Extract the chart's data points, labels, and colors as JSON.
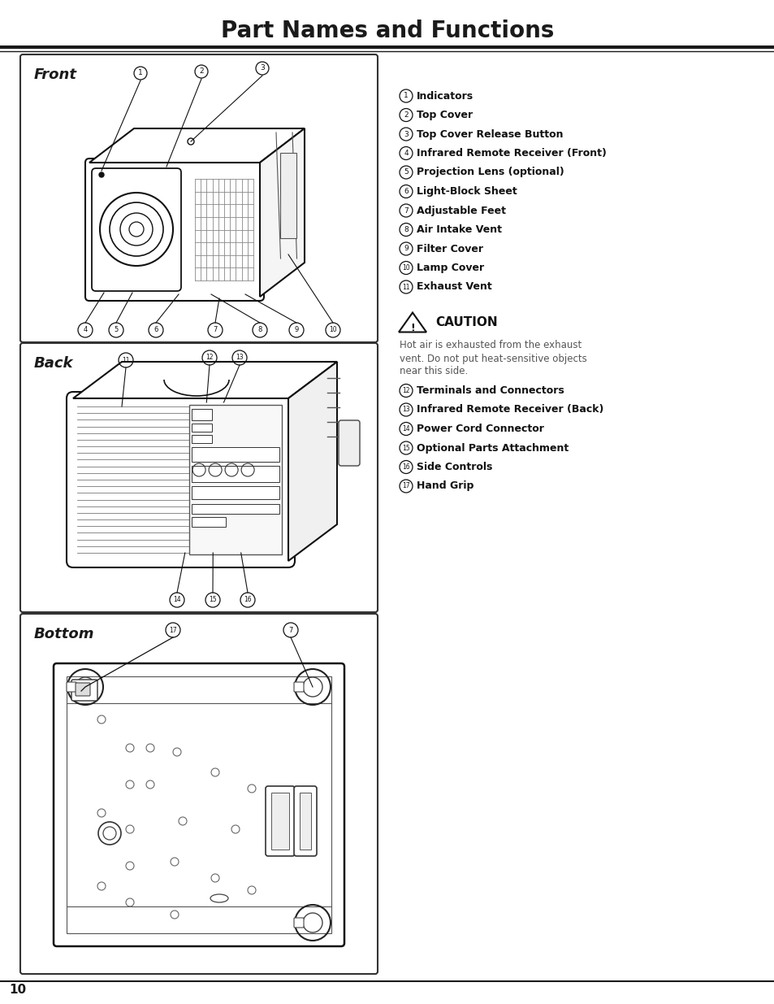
{
  "title": "Part Names and Functions",
  "title_fontsize": 20,
  "background_color": "#ffffff",
  "page_number": "10",
  "items_col1": [
    {
      "num": "1",
      "text": "Indicators"
    },
    {
      "num": "2",
      "text": "Top Cover"
    },
    {
      "num": "3",
      "text": "Top Cover Release Button"
    },
    {
      "num": "4",
      "text": "Infrared Remote Receiver (Front)"
    },
    {
      "num": "5",
      "text": "Projection Lens (optional)"
    },
    {
      "num": "6",
      "text": "Light-Block Sheet"
    },
    {
      "num": "7",
      "text": "Adjustable Feet"
    },
    {
      "num": "8",
      "text": "Air Intake Vent"
    },
    {
      "num": "9",
      "text": "Filter Cover"
    },
    {
      "num": "10",
      "text": "Lamp Cover"
    },
    {
      "num": "11",
      "text": "Exhaust Vent"
    }
  ],
  "caution_text": "Hot air is exhausted from the exhaust\nvent. Do not put heat-sensitive objects\nnear this side.",
  "items_col2": [
    {
      "num": "12",
      "text": "Terminals and Connectors"
    },
    {
      "num": "13",
      "text": "Infrared Remote Receiver (Back)"
    },
    {
      "num": "14",
      "text": "Power Cord Connector"
    },
    {
      "num": "15",
      "text": "Optional Parts Attachment"
    },
    {
      "num": "16",
      "text": "Side Controls"
    },
    {
      "num": "17",
      "text": "Hand Grip"
    }
  ]
}
